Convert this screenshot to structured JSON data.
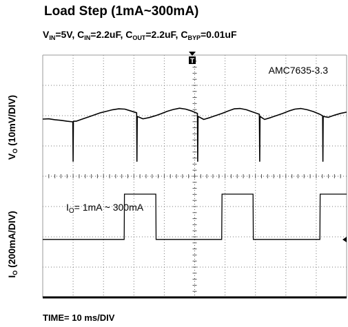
{
  "chart_data": {
    "type": "line",
    "title": "Load Step (1mA~300mA)",
    "subtitle": {
      "v_in": {
        "base": "V",
        "sub": "IN",
        "value": "=5V, "
      },
      "c_in": {
        "base": "C",
        "sub": "IN",
        "value": "=2.2uF, "
      },
      "c_out": {
        "base": "C",
        "sub": "OUT",
        "value": "=2.2uF, "
      },
      "c_byp": {
        "base": "C",
        "sub": "BYP",
        "value": "=0.01uF"
      }
    },
    "device_label": "AMC7635-3.3",
    "xlabel": "TIME= 10 ms/DIV",
    "ylabel_voltage": {
      "base": "V",
      "sub": "O",
      "rest": " (10mV/DIV)"
    },
    "ylabel_current": {
      "base": "I",
      "sub": "O",
      "rest": " (200mA/DIV)"
    },
    "current_annotation": {
      "base": "I",
      "sub": "O",
      "rest": "= 1mA ~ 300mA"
    },
    "trigger_marker": "T",
    "x_unit": "ms",
    "xlim": [
      0,
      100
    ],
    "x_divisions": 10,
    "y_divisions": 8,
    "grid": true,
    "series": [
      {
        "name": "",
        "unit": "mV",
        "description_visible": false,
        "x": [
          0,
          2,
          4,
          6,
          8,
          9.9,
          10.0,
          10.1,
          11,
          13,
          15,
          17,
          19,
          21,
          23,
          25,
          27,
          29,
          30.9,
          31.0,
          31.1,
          33,
          35,
          37,
          39,
          41,
          43,
          45,
          47,
          49,
          50.9,
          51.0,
          51.1,
          53,
          55,
          57,
          59,
          61,
          63,
          65,
          67,
          69,
          71.3,
          71.4,
          71.5,
          73,
          75,
          77,
          79,
          81,
          83,
          85,
          87,
          89,
          91,
          92.1,
          92.2,
          92.3,
          94,
          96,
          98,
          100
        ],
        "y": [
          0.9,
          1.0,
          0.7,
          0.5,
          0.2,
          0.0,
          -13.0,
          0.2,
          0.2,
          0.9,
          1.6,
          2.3,
          3.0,
          3.5,
          4.0,
          4.3,
          4.2,
          3.6,
          3.0,
          -13.0,
          1.8,
          1.0,
          1.4,
          2.0,
          2.7,
          3.5,
          4.1,
          4.5,
          4.2,
          3.6,
          2.8,
          -13.0,
          1.8,
          0.8,
          1.4,
          2.1,
          2.8,
          3.6,
          4.3,
          4.4,
          4.0,
          3.3,
          2.5,
          -13.0,
          1.8,
          0.8,
          1.4,
          2.1,
          2.8,
          3.6,
          4.2,
          4.4,
          4.0,
          3.4,
          2.6,
          2.0,
          -13.0,
          1.8,
          1.5,
          2.2,
          2.8,
          3.2
        ]
      },
      {
        "name": "",
        "unit": "mA",
        "description_visible": false,
        "x": [
          0,
          26.8,
          26.9,
          37.2,
          37.3,
          58.9,
          59.0,
          69.2,
          69.3,
          91.2,
          91.3,
          100
        ],
        "y": [
          1,
          1,
          300,
          300,
          1,
          1,
          300,
          300,
          1,
          1,
          300,
          300
        ]
      },
      {
        "name": "",
        "unit": "mA",
        "description_visible": false,
        "x": [],
        "y": []
      }
    ]
  }
}
